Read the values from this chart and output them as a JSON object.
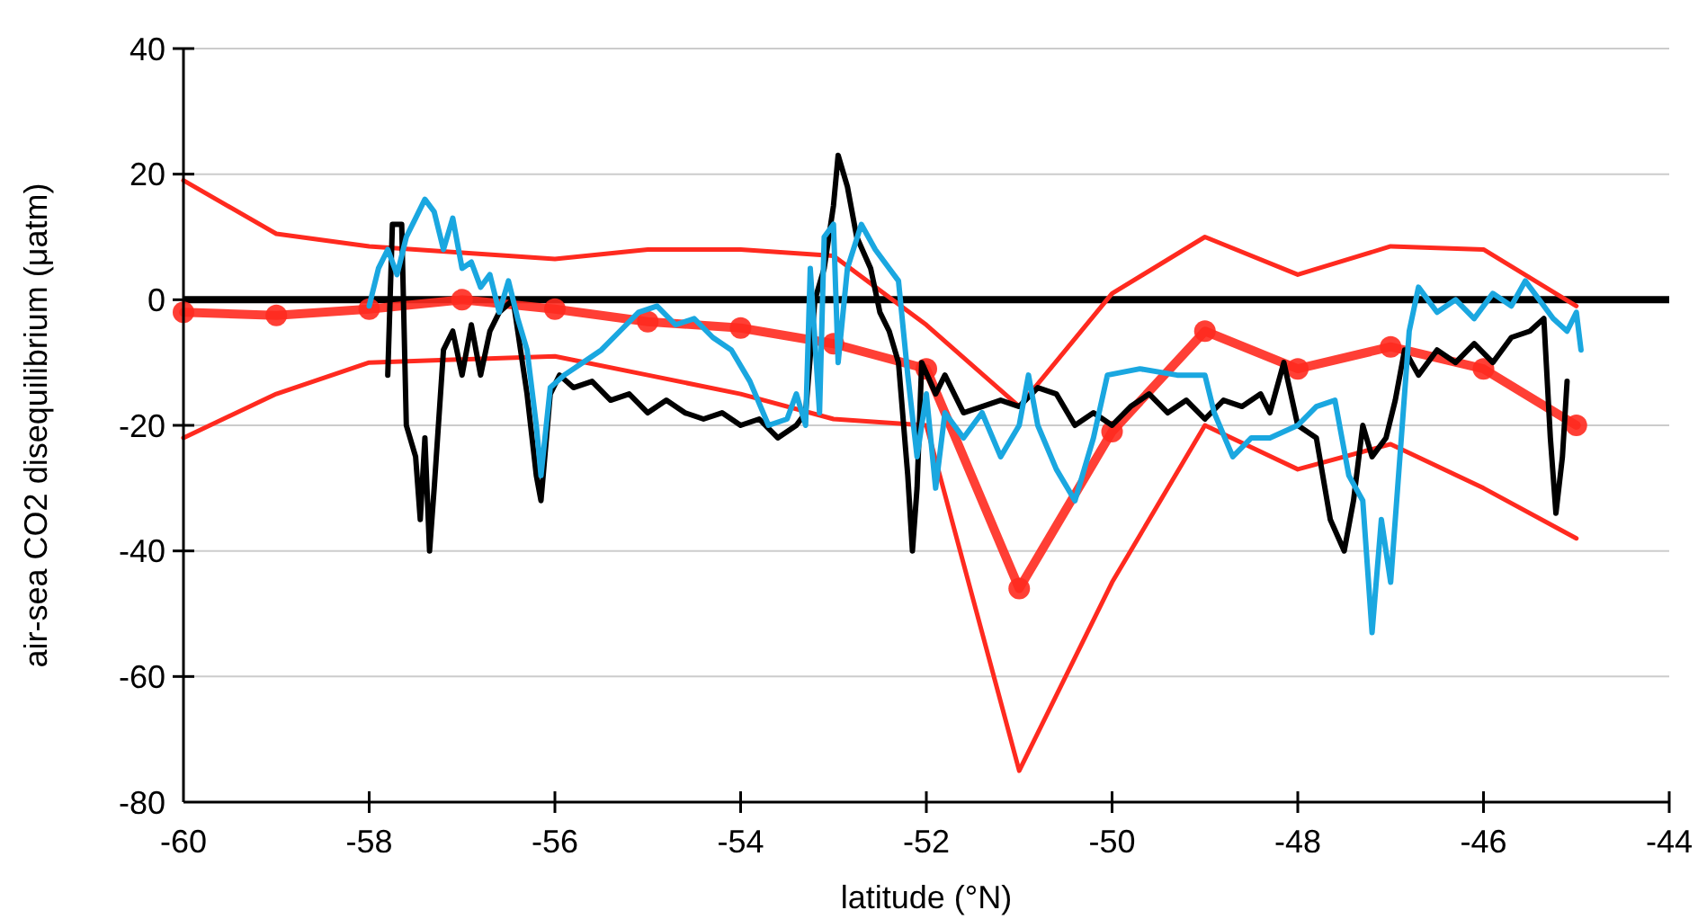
{
  "chart_data": {
    "type": "line",
    "xlabel": "latitude (°N)",
    "ylabel": "air-sea CO2 disequilibrium (μatm)",
    "xlim": [
      -60,
      -44
    ],
    "xticks": [
      -60,
      -58,
      -56,
      -54,
      -52,
      -50,
      -48,
      -46,
      -44
    ],
    "ylim": [
      -80,
      40
    ],
    "yticks": [
      -80,
      -60,
      -40,
      -20,
      0,
      20,
      40
    ],
    "grid": "y",
    "line_style": "solid",
    "ref_lines": [
      {
        "axis": "y",
        "value": 0,
        "color": "#000000"
      }
    ],
    "series": [
      {
        "color": "#ff2a1f",
        "marker": "none",
        "x": [
          -60,
          -59,
          -58,
          -57,
          -56,
          -55,
          -54,
          -53,
          -52,
          -51,
          -50,
          -49,
          -48,
          -47,
          -46,
          -45
        ],
        "values": [
          19,
          10.5,
          8.5,
          7.5,
          6.5,
          8,
          8,
          7,
          -4,
          -17,
          1,
          10,
          4,
          8.5,
          8,
          -1
        ]
      },
      {
        "color": "#ff2a1f",
        "marker": "none",
        "x": [
          -60,
          -59,
          -58,
          -57,
          -56,
          -55,
          -54,
          -53,
          -52,
          -51,
          -50,
          -49,
          -48,
          -47,
          -46,
          -45
        ],
        "values": [
          -22,
          -15,
          -10,
          -9.5,
          -9,
          -12,
          -15,
          -19,
          -20,
          -75,
          -45,
          -20,
          -27,
          -23,
          -30,
          -38
        ]
      },
      {
        "color": "#ff2a1f",
        "marker": "circle",
        "x": [
          -60,
          -59,
          -58,
          -57,
          -56,
          -55,
          -54,
          -53,
          -52,
          -51,
          -50,
          -49,
          -48,
          -47,
          -46,
          -45
        ],
        "values": [
          -2,
          -2.5,
          -1.5,
          0,
          -1.5,
          -3.5,
          -4.5,
          -7,
          -11,
          -46,
          -21,
          -5,
          -11,
          -7.5,
          -11,
          -20
        ]
      },
      {
        "color": "#000000",
        "marker": "none",
        "x": [
          -57.8,
          -57.75,
          -57.65,
          -57.6,
          -57.5,
          -57.45,
          -57.4,
          -57.35,
          -57.3,
          -57.2,
          -57.1,
          -57,
          -56.9,
          -56.8,
          -56.7,
          -56.6,
          -56.45,
          -56.3,
          -56.2,
          -56.15,
          -56.05,
          -55.95,
          -55.8,
          -55.6,
          -55.4,
          -55.2,
          -55,
          -54.8,
          -54.6,
          -54.4,
          -54.2,
          -54,
          -53.8,
          -53.6,
          -53.4,
          -53.3,
          -53.2,
          -53.1,
          -53,
          -52.95,
          -52.85,
          -52.75,
          -52.6,
          -52.5,
          -52.4,
          -52.3,
          -52.2,
          -52.15,
          -52.1,
          -52.05,
          -51.9,
          -51.8,
          -51.6,
          -51.4,
          -51.2,
          -51,
          -50.8,
          -50.6,
          -50.4,
          -50.2,
          -50,
          -49.8,
          -49.6,
          -49.4,
          -49.2,
          -49,
          -48.8,
          -48.6,
          -48.4,
          -48.3,
          -48.15,
          -48,
          -47.8,
          -47.65,
          -47.5,
          -47.4,
          -47.3,
          -47.2,
          -47.05,
          -46.95,
          -46.85,
          -46.7,
          -46.5,
          -46.3,
          -46.1,
          -45.9,
          -45.7,
          -45.5,
          -45.35,
          -45.28,
          -45.22,
          -45.15,
          -45.1
        ],
        "values": [
          -12,
          12,
          12,
          -20,
          -25,
          -35,
          -22,
          -40,
          -30,
          -8,
          -5,
          -12,
          -4,
          -12,
          -5,
          -2,
          0,
          -15,
          -28,
          -32,
          -15,
          -12,
          -14,
          -13,
          -16,
          -15,
          -18,
          -16,
          -18,
          -19,
          -18,
          -20,
          -19,
          -22,
          -20,
          -18,
          0,
          5,
          15,
          23,
          18,
          10,
          5,
          -2,
          -5,
          -10,
          -28,
          -40,
          -30,
          -10,
          -15,
          -12,
          -18,
          -17,
          -16,
          -17,
          -14,
          -15,
          -20,
          -18,
          -20,
          -17,
          -15,
          -18,
          -16,
          -19,
          -16,
          -17,
          -15,
          -18,
          -10,
          -20,
          -22,
          -35,
          -40,
          -32,
          -20,
          -25,
          -22,
          -16,
          -8,
          -12,
          -8,
          -10,
          -7,
          -10,
          -6,
          -5,
          -3,
          -22,
          -34,
          -25,
          -13
        ]
      },
      {
        "color": "#1aa7e0",
        "marker": "none",
        "x": [
          -58,
          -57.9,
          -57.8,
          -57.7,
          -57.6,
          -57.5,
          -57.4,
          -57.3,
          -57.2,
          -57.1,
          -57,
          -56.9,
          -56.8,
          -56.7,
          -56.6,
          -56.5,
          -56.4,
          -56.3,
          -56.2,
          -56.15,
          -56.05,
          -55.9,
          -55.7,
          -55.5,
          -55.3,
          -55.1,
          -54.9,
          -54.7,
          -54.5,
          -54.3,
          -54.1,
          -53.9,
          -53.7,
          -53.5,
          -53.4,
          -53.3,
          -53.25,
          -53.15,
          -53.1,
          -53,
          -52.95,
          -52.85,
          -52.7,
          -52.55,
          -52.4,
          -52.3,
          -52.2,
          -52.1,
          -52,
          -51.9,
          -51.8,
          -51.6,
          -51.4,
          -51.2,
          -51,
          -50.9,
          -50.8,
          -50.6,
          -50.4,
          -50.2,
          -50.05,
          -49.7,
          -49.3,
          -49,
          -48.9,
          -48.7,
          -48.5,
          -48.3,
          -48,
          -47.8,
          -47.6,
          -47.45,
          -47.3,
          -47.2,
          -47.1,
          -47,
          -46.9,
          -46.8,
          -46.7,
          -46.5,
          -46.3,
          -46.1,
          -45.9,
          -45.7,
          -45.55,
          -45.4,
          -45.25,
          -45.1,
          -45,
          -44.95
        ],
        "values": [
          -1,
          5,
          8,
          4,
          10,
          13,
          16,
          14,
          8,
          13,
          5,
          6,
          2,
          4,
          -2,
          3,
          -3,
          -8,
          -20,
          -28,
          -14,
          -12,
          -10,
          -8,
          -5,
          -2,
          -1,
          -4,
          -3,
          -6,
          -8,
          -13,
          -20,
          -19,
          -15,
          -20,
          5,
          -18,
          10,
          12,
          -10,
          5,
          12,
          8,
          5,
          3,
          -12,
          -25,
          -15,
          -30,
          -18,
          -22,
          -18,
          -25,
          -20,
          -12,
          -20,
          -27,
          -32,
          -22,
          -12,
          -11,
          -12,
          -12,
          -18,
          -25,
          -22,
          -22,
          -20,
          -17,
          -16,
          -28,
          -32,
          -53,
          -35,
          -45,
          -25,
          -5,
          2,
          -2,
          0,
          -3,
          1,
          -1,
          3,
          0,
          -3,
          -5,
          -2,
          -8
        ]
      }
    ]
  }
}
